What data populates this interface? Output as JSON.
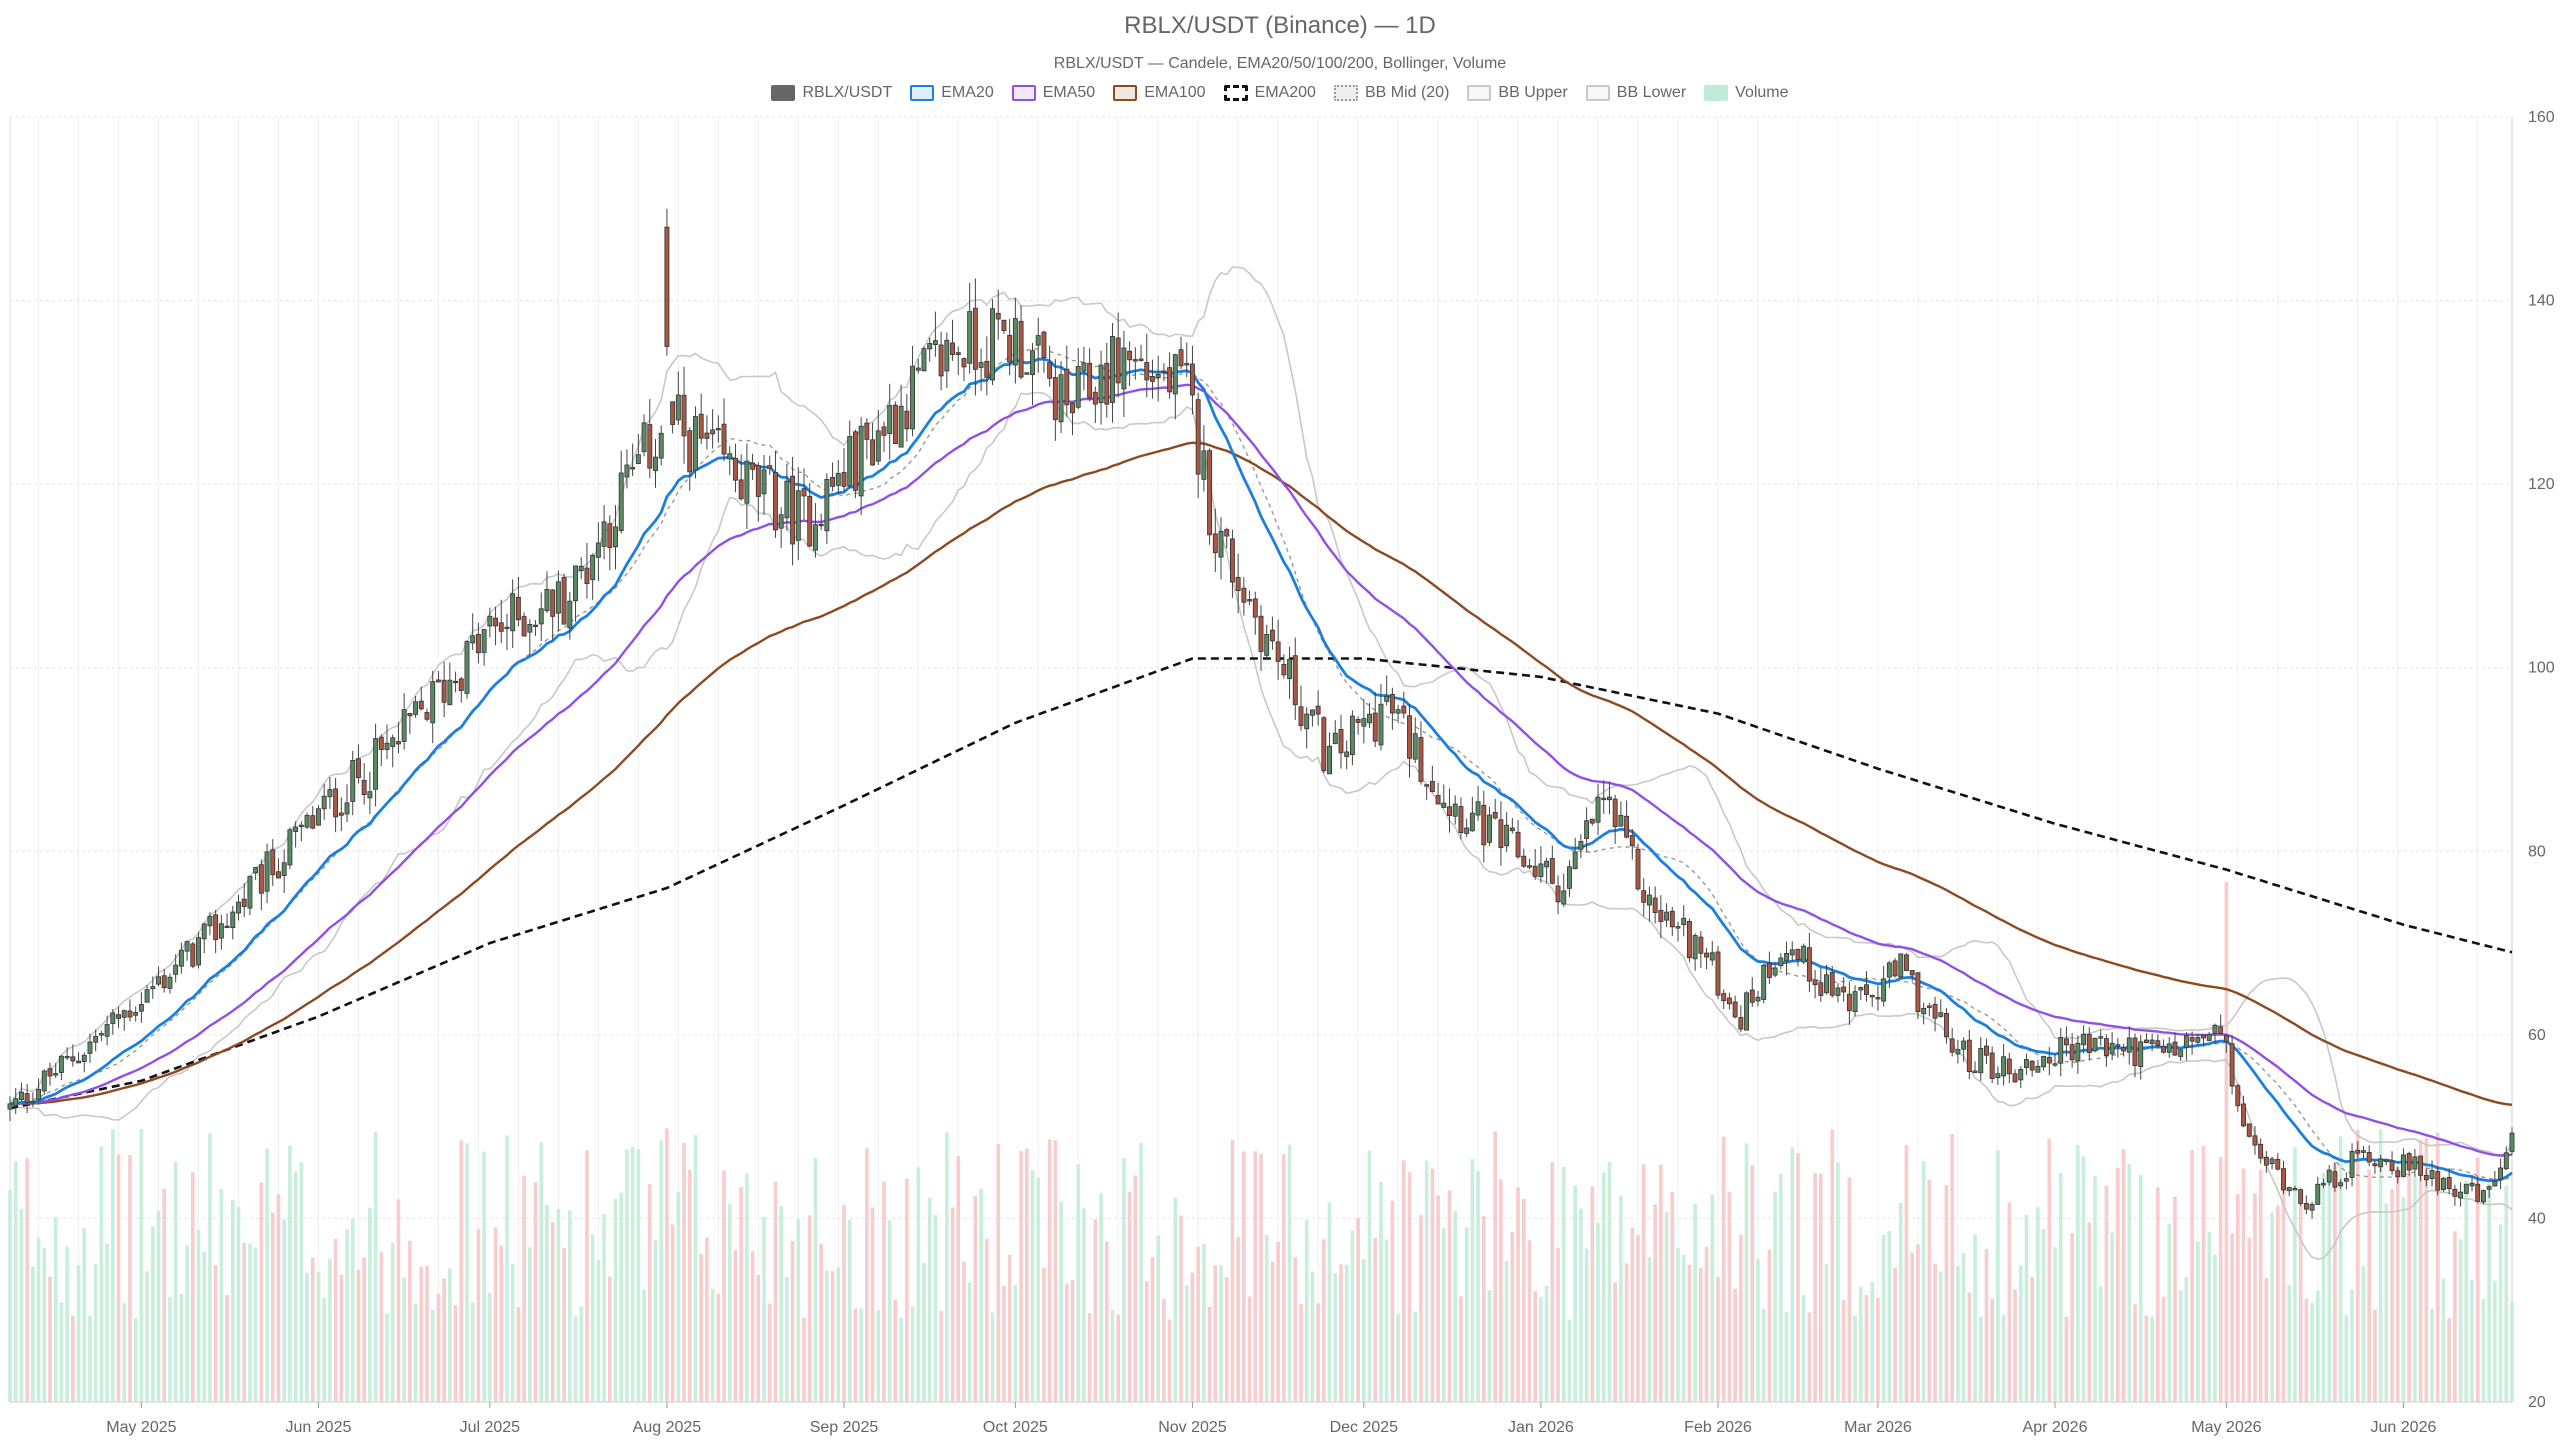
{
  "chart_data": {
    "type": "candlestick",
    "title": "RBLX/USDT (Binance) — 1D",
    "subtitle": "RBLX/USDT — Candele, EMA20/50/100/200, Bollinger, Volume",
    "legend": [
      {
        "label": "RBLX/USDT",
        "color": "#666666",
        "style": "fill"
      },
      {
        "label": "EMA20",
        "color": "#1a7fe0",
        "style": "line"
      },
      {
        "label": "EMA50",
        "color": "#9050e8",
        "style": "line"
      },
      {
        "label": "EMA100",
        "color": "#8b4a20",
        "style": "line"
      },
      {
        "label": "EMA200",
        "color": "#111111",
        "style": "dashed"
      },
      {
        "label": "BB Mid (20)",
        "color": "#999999",
        "style": "dotted"
      },
      {
        "label": "BB Upper",
        "color": "#c8c8c8",
        "style": "line"
      },
      {
        "label": "BB Lower",
        "color": "#c8c8c8",
        "style": "line"
      },
      {
        "label": "Volume",
        "color": "#bfecd6",
        "style": "fill"
      }
    ],
    "y_axis": {
      "min": 20,
      "max": 160,
      "ticks": [
        20,
        40,
        60,
        80,
        100,
        120,
        140,
        160
      ],
      "position": "right"
    },
    "x_axis": {
      "start": "2025-04-08",
      "end": "2026-06-20",
      "tick_labels": [
        {
          "label": "May 2025",
          "date": "2025-05-01"
        },
        {
          "label": "Jun 2025",
          "date": "2025-06-01"
        },
        {
          "label": "Jul 2025",
          "date": "2025-07-01"
        },
        {
          "label": "Aug 2025",
          "date": "2025-08-01"
        },
        {
          "label": "Sep 2025",
          "date": "2025-09-01"
        },
        {
          "label": "Oct 2025",
          "date": "2025-10-01"
        },
        {
          "label": "Nov 2025",
          "date": "2025-11-01"
        },
        {
          "label": "Dec 2025",
          "date": "2025-12-01"
        },
        {
          "label": "Jan 2026",
          "date": "2026-01-01"
        },
        {
          "label": "Feb 2026",
          "date": "2026-02-01"
        },
        {
          "label": "Mar 2026",
          "date": "2026-03-01"
        },
        {
          "label": "Apr 2026",
          "date": "2026-04-01"
        },
        {
          "label": "May 2026",
          "date": "2026-05-01"
        },
        {
          "label": "Jun 2026",
          "date": "2026-06-01"
        }
      ]
    },
    "close_path": [
      {
        "date": "2025-04-08",
        "close": 52
      },
      {
        "date": "2025-04-20",
        "close": 58
      },
      {
        "date": "2025-05-01",
        "close": 64
      },
      {
        "date": "2025-05-15",
        "close": 72
      },
      {
        "date": "2025-06-01",
        "close": 84
      },
      {
        "date": "2025-06-15",
        "close": 92
      },
      {
        "date": "2025-07-01",
        "close": 104
      },
      {
        "date": "2025-07-15",
        "close": 108
      },
      {
        "date": "2025-07-25",
        "close": 120
      },
      {
        "date": "2025-08-01",
        "close": 127
      },
      {
        "date": "2025-08-15",
        "close": 120
      },
      {
        "date": "2025-08-25",
        "close": 116
      },
      {
        "date": "2025-09-10",
        "close": 128
      },
      {
        "date": "2025-09-20",
        "close": 135
      },
      {
        "date": "2025-10-01",
        "close": 136
      },
      {
        "date": "2025-10-10",
        "close": 128
      },
      {
        "date": "2025-10-20",
        "close": 134
      },
      {
        "date": "2025-10-31",
        "close": 130
      },
      {
        "date": "2025-11-05",
        "close": 115
      },
      {
        "date": "2025-11-15",
        "close": 102
      },
      {
        "date": "2025-11-25",
        "close": 90
      },
      {
        "date": "2025-12-05",
        "close": 96
      },
      {
        "date": "2025-12-15",
        "close": 86
      },
      {
        "date": "2025-12-25",
        "close": 81
      },
      {
        "date": "2026-01-05",
        "close": 76
      },
      {
        "date": "2026-01-12",
        "close": 86
      },
      {
        "date": "2026-01-20",
        "close": 74
      },
      {
        "date": "2026-01-28",
        "close": 70
      },
      {
        "date": "2026-02-05",
        "close": 62
      },
      {
        "date": "2026-02-12",
        "close": 70
      },
      {
        "date": "2026-02-25",
        "close": 63
      },
      {
        "date": "2026-03-05",
        "close": 67
      },
      {
        "date": "2026-03-15",
        "close": 58
      },
      {
        "date": "2026-03-25",
        "close": 56
      },
      {
        "date": "2026-04-05",
        "close": 59
      },
      {
        "date": "2026-04-20",
        "close": 58
      },
      {
        "date": "2026-04-30",
        "close": 60
      },
      {
        "date": "2026-05-05",
        "close": 48
      },
      {
        "date": "2026-05-15",
        "close": 42
      },
      {
        "date": "2026-05-25",
        "close": 47
      },
      {
        "date": "2026-06-05",
        "close": 45
      },
      {
        "date": "2026-06-15",
        "close": 42
      },
      {
        "date": "2026-06-20",
        "close": 48
      }
    ],
    "spikes": [
      {
        "date": "2025-08-01",
        "high": 150,
        "low": 135
      }
    ],
    "ema200_path": [
      {
        "date": "2025-04-08",
        "value": 52
      },
      {
        "date": "2025-05-01",
        "value": 55
      },
      {
        "date": "2025-06-01",
        "value": 62
      },
      {
        "date": "2025-07-01",
        "value": 70
      },
      {
        "date": "2025-08-01",
        "value": 76
      },
      {
        "date": "2025-09-01",
        "value": 85
      },
      {
        "date": "2025-10-01",
        "value": 94
      },
      {
        "date": "2025-11-01",
        "value": 101
      },
      {
        "date": "2025-12-01",
        "value": 101
      },
      {
        "date": "2026-01-01",
        "value": 99
      },
      {
        "date": "2026-02-01",
        "value": 95
      },
      {
        "date": "2026-03-01",
        "value": 89
      },
      {
        "date": "2026-04-01",
        "value": 83
      },
      {
        "date": "2026-05-01",
        "value": 78
      },
      {
        "date": "2026-06-01",
        "value": 72
      },
      {
        "date": "2026-06-20",
        "value": 69
      }
    ],
    "volume_notes": {
      "peak_date": "2026-05-01",
      "colors": {
        "up": "#bfecd6",
        "down": "#f7c4c4"
      }
    },
    "grid": true,
    "legend_position": "top-center"
  }
}
